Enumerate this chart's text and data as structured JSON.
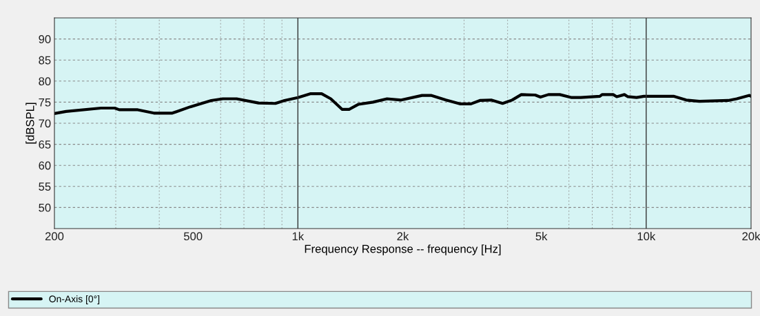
{
  "chart_data": {
    "type": "line",
    "xlabel": "Frequency Response -- frequency [Hz]",
    "ylabel": "[dBSPL]",
    "log": "x",
    "xlim": [
      200,
      20000
    ],
    "xticks": [
      200,
      500,
      {
        "value": 1000,
        "label": "1k"
      },
      {
        "value": 2000,
        "label": "2k"
      },
      {
        "value": 5000,
        "label": "5k"
      },
      {
        "value": 10000,
        "label": "10k"
      },
      {
        "value": 20000,
        "label": "20k"
      }
    ],
    "ylim": [
      45,
      95
    ],
    "yticks": [
      50,
      55,
      60,
      65,
      70,
      75,
      80,
      85,
      90
    ],
    "grid": true,
    "legend": "bottom",
    "line_style": "solid",
    "marker": "none",
    "series": [
      {
        "name": "On-Axis [0°]",
        "color": "#000000",
        "x": [
          200,
          216,
          272,
          298,
          307,
          347,
          386,
          436,
          491,
          564,
          609,
          667,
          771,
          862,
          915,
          1000,
          1085,
          1170,
          1243,
          1339,
          1403,
          1494,
          1643,
          1803,
          1980,
          2272,
          2411,
          2660,
          2917,
          3140,
          3330,
          3590,
          3870,
          4120,
          4380,
          4800,
          4970,
          5240,
          5650,
          6110,
          6490,
          7360,
          7470,
          8040,
          8230,
          8660,
          8860,
          9380,
          9850,
          11980,
          13030,
          14200,
          17200,
          18200,
          19800,
          20000
        ],
        "values": [
          72.3,
          72.8,
          73.6,
          73.6,
          73.2,
          73.2,
          72.4,
          72.4,
          73.9,
          75.4,
          75.8,
          75.8,
          74.8,
          74.7,
          75.4,
          76.1,
          77.0,
          77.0,
          75.8,
          73.3,
          73.3,
          74.5,
          75.0,
          75.8,
          75.5,
          76.6,
          76.6,
          75.5,
          74.6,
          74.6,
          75.4,
          75.5,
          74.7,
          75.5,
          76.8,
          76.7,
          76.2,
          76.8,
          76.8,
          76.1,
          76.1,
          76.4,
          76.8,
          76.8,
          76.3,
          76.8,
          76.3,
          76.1,
          76.4,
          76.4,
          75.5,
          75.2,
          75.4,
          75.8,
          76.6,
          76.4
        ]
      }
    ]
  }
}
